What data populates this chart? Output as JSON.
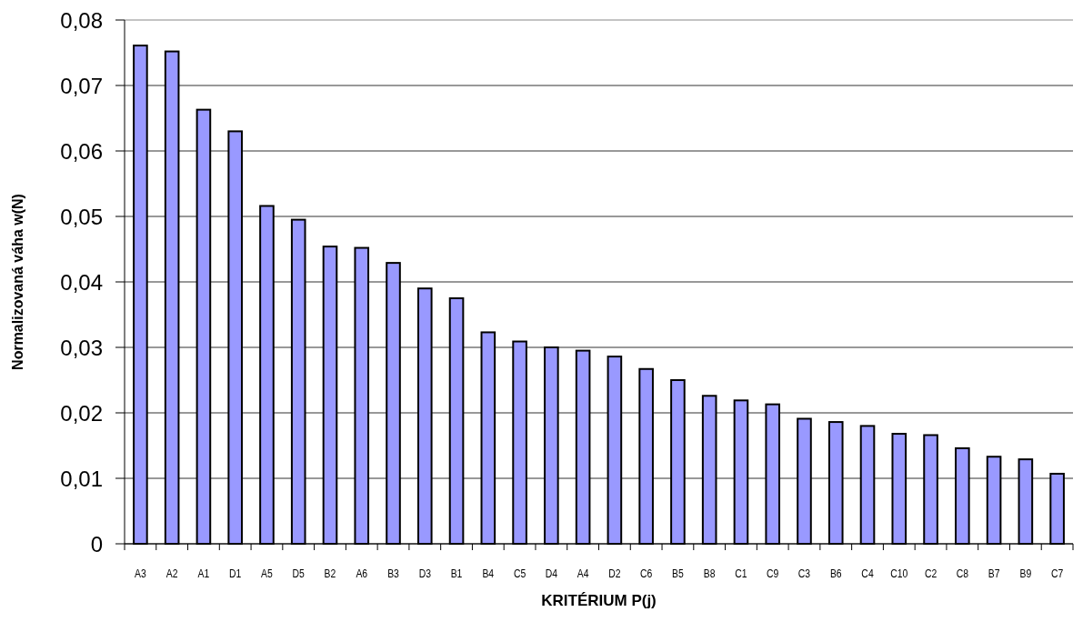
{
  "chart_data": {
    "type": "bar",
    "xlabel": "KRITÉRIUM  P(j)",
    "ylabel": "Normalizovaná váha  w(N)",
    "categories": [
      "A3",
      "A2",
      "A1",
      "D1",
      "A5",
      "D5",
      "B2",
      "A6",
      "B3",
      "D3",
      "B1",
      "B4",
      "C5",
      "D4",
      "A4",
      "D2",
      "C6",
      "B5",
      "B8",
      "C1",
      "C9",
      "C3",
      "B6",
      "C4",
      "C10",
      "C2",
      "C8",
      "B7",
      "B9",
      "C7"
    ],
    "values": [
      0.0761,
      0.0752,
      0.0663,
      0.063,
      0.0516,
      0.0495,
      0.0454,
      0.0452,
      0.0429,
      0.039,
      0.0375,
      0.0323,
      0.0309,
      0.03,
      0.0295,
      0.0286,
      0.0267,
      0.025,
      0.0226,
      0.0219,
      0.0213,
      0.0191,
      0.0186,
      0.018,
      0.0168,
      0.0166,
      0.0146,
      0.0133,
      0.0129,
      0.0107
    ],
    "color": "#9999ff",
    "ylim": [
      0,
      0.08
    ],
    "yticks": [
      {
        "value": 0,
        "label": "0"
      },
      {
        "value": 0.01,
        "label": "0,01"
      },
      {
        "value": 0.02,
        "label": "0,02"
      },
      {
        "value": 0.03,
        "label": "0,03"
      },
      {
        "value": 0.04,
        "label": "0,04"
      },
      {
        "value": 0.05,
        "label": "0,05"
      },
      {
        "value": 0.06,
        "label": "0,06"
      },
      {
        "value": 0.07,
        "label": "0,07"
      },
      {
        "value": 0.08,
        "label": "0,08"
      }
    ],
    "grid": "y"
  }
}
